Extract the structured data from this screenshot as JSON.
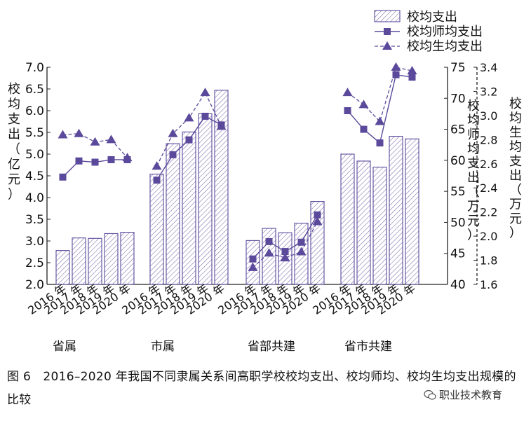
{
  "chart_data": {
    "type": "bar",
    "groups": [
      {
        "name": "省属"
      },
      {
        "name": "市属"
      },
      {
        "name": "省部共建"
      },
      {
        "name": "省市共建"
      }
    ],
    "categories": [
      "2016 年",
      "2017 年",
      "2018 年",
      "2019 年",
      "2020 年"
    ],
    "series": [
      {
        "name": "校均支出",
        "kind": "bar",
        "axis": "left",
        "values": [
          [
            2.78,
            3.07,
            3.06,
            3.17,
            3.2
          ],
          [
            4.54,
            5.24,
            5.51,
            5.93,
            6.47
          ],
          [
            3.01,
            3.29,
            3.19,
            3.41,
            3.91
          ],
          [
            5.0,
            4.84,
            4.7,
            5.41,
            5.35
          ]
        ]
      },
      {
        "name": "校均师均支出",
        "kind": "line",
        "marker": "square",
        "axis": "right1",
        "values": [
          [
            57.3,
            59.9,
            59.7,
            60.1,
            60.1
          ],
          [
            56.8,
            60.9,
            63.3,
            67.1,
            65.7
          ],
          [
            44.1,
            46.9,
            45.3,
            46.8,
            51.2
          ],
          [
            68.0,
            65.0,
            62.8,
            73.8,
            73.4
          ]
        ]
      },
      {
        "name": "校均生均支出",
        "kind": "line",
        "marker": "triangle",
        "axis": "right2",
        "values": [
          [
            2.84,
            2.85,
            2.78,
            2.8,
            2.65
          ],
          [
            2.58,
            2.85,
            2.98,
            3.19,
            2.91
          ],
          [
            1.74,
            1.86,
            1.82,
            1.87,
            2.12
          ],
          [
            3.19,
            3.09,
            2.95,
            3.4,
            3.37
          ]
        ]
      }
    ],
    "axes": {
      "left": {
        "label": "校均支出（亿元）",
        "min": 2.0,
        "max": 7.0,
        "ticks": [
          "2.0",
          "2.5",
          "3.0",
          "3.5",
          "4.0",
          "4.5",
          "5.0",
          "5.5",
          "6.0",
          "6.5",
          "7.0"
        ]
      },
      "right1": {
        "label": "校均师均支出（万元）",
        "min": 40,
        "max": 75,
        "ticks": [
          "40",
          "45",
          "50",
          "55",
          "60",
          "65",
          "70",
          "75"
        ]
      },
      "right2": {
        "label": "校均生均支出（万元）",
        "min": 1.6,
        "max": 3.4,
        "ticks": [
          "1.6",
          "1.8",
          "2.0",
          "2.2",
          "2.4",
          "2.6",
          "2.8",
          "3.0",
          "3.2",
          "3.4"
        ]
      }
    },
    "legend_position": "top-right",
    "colors": {
      "bar": "#5b4a9b",
      "line": "#5b4a9b",
      "axis": "#222222"
    }
  },
  "caption": "图 6　2016–2020 年我国不同隶属关系间高职学校校均支出、校均师均、校均生均支出规模的比较",
  "watermark": "职业技术教育"
}
